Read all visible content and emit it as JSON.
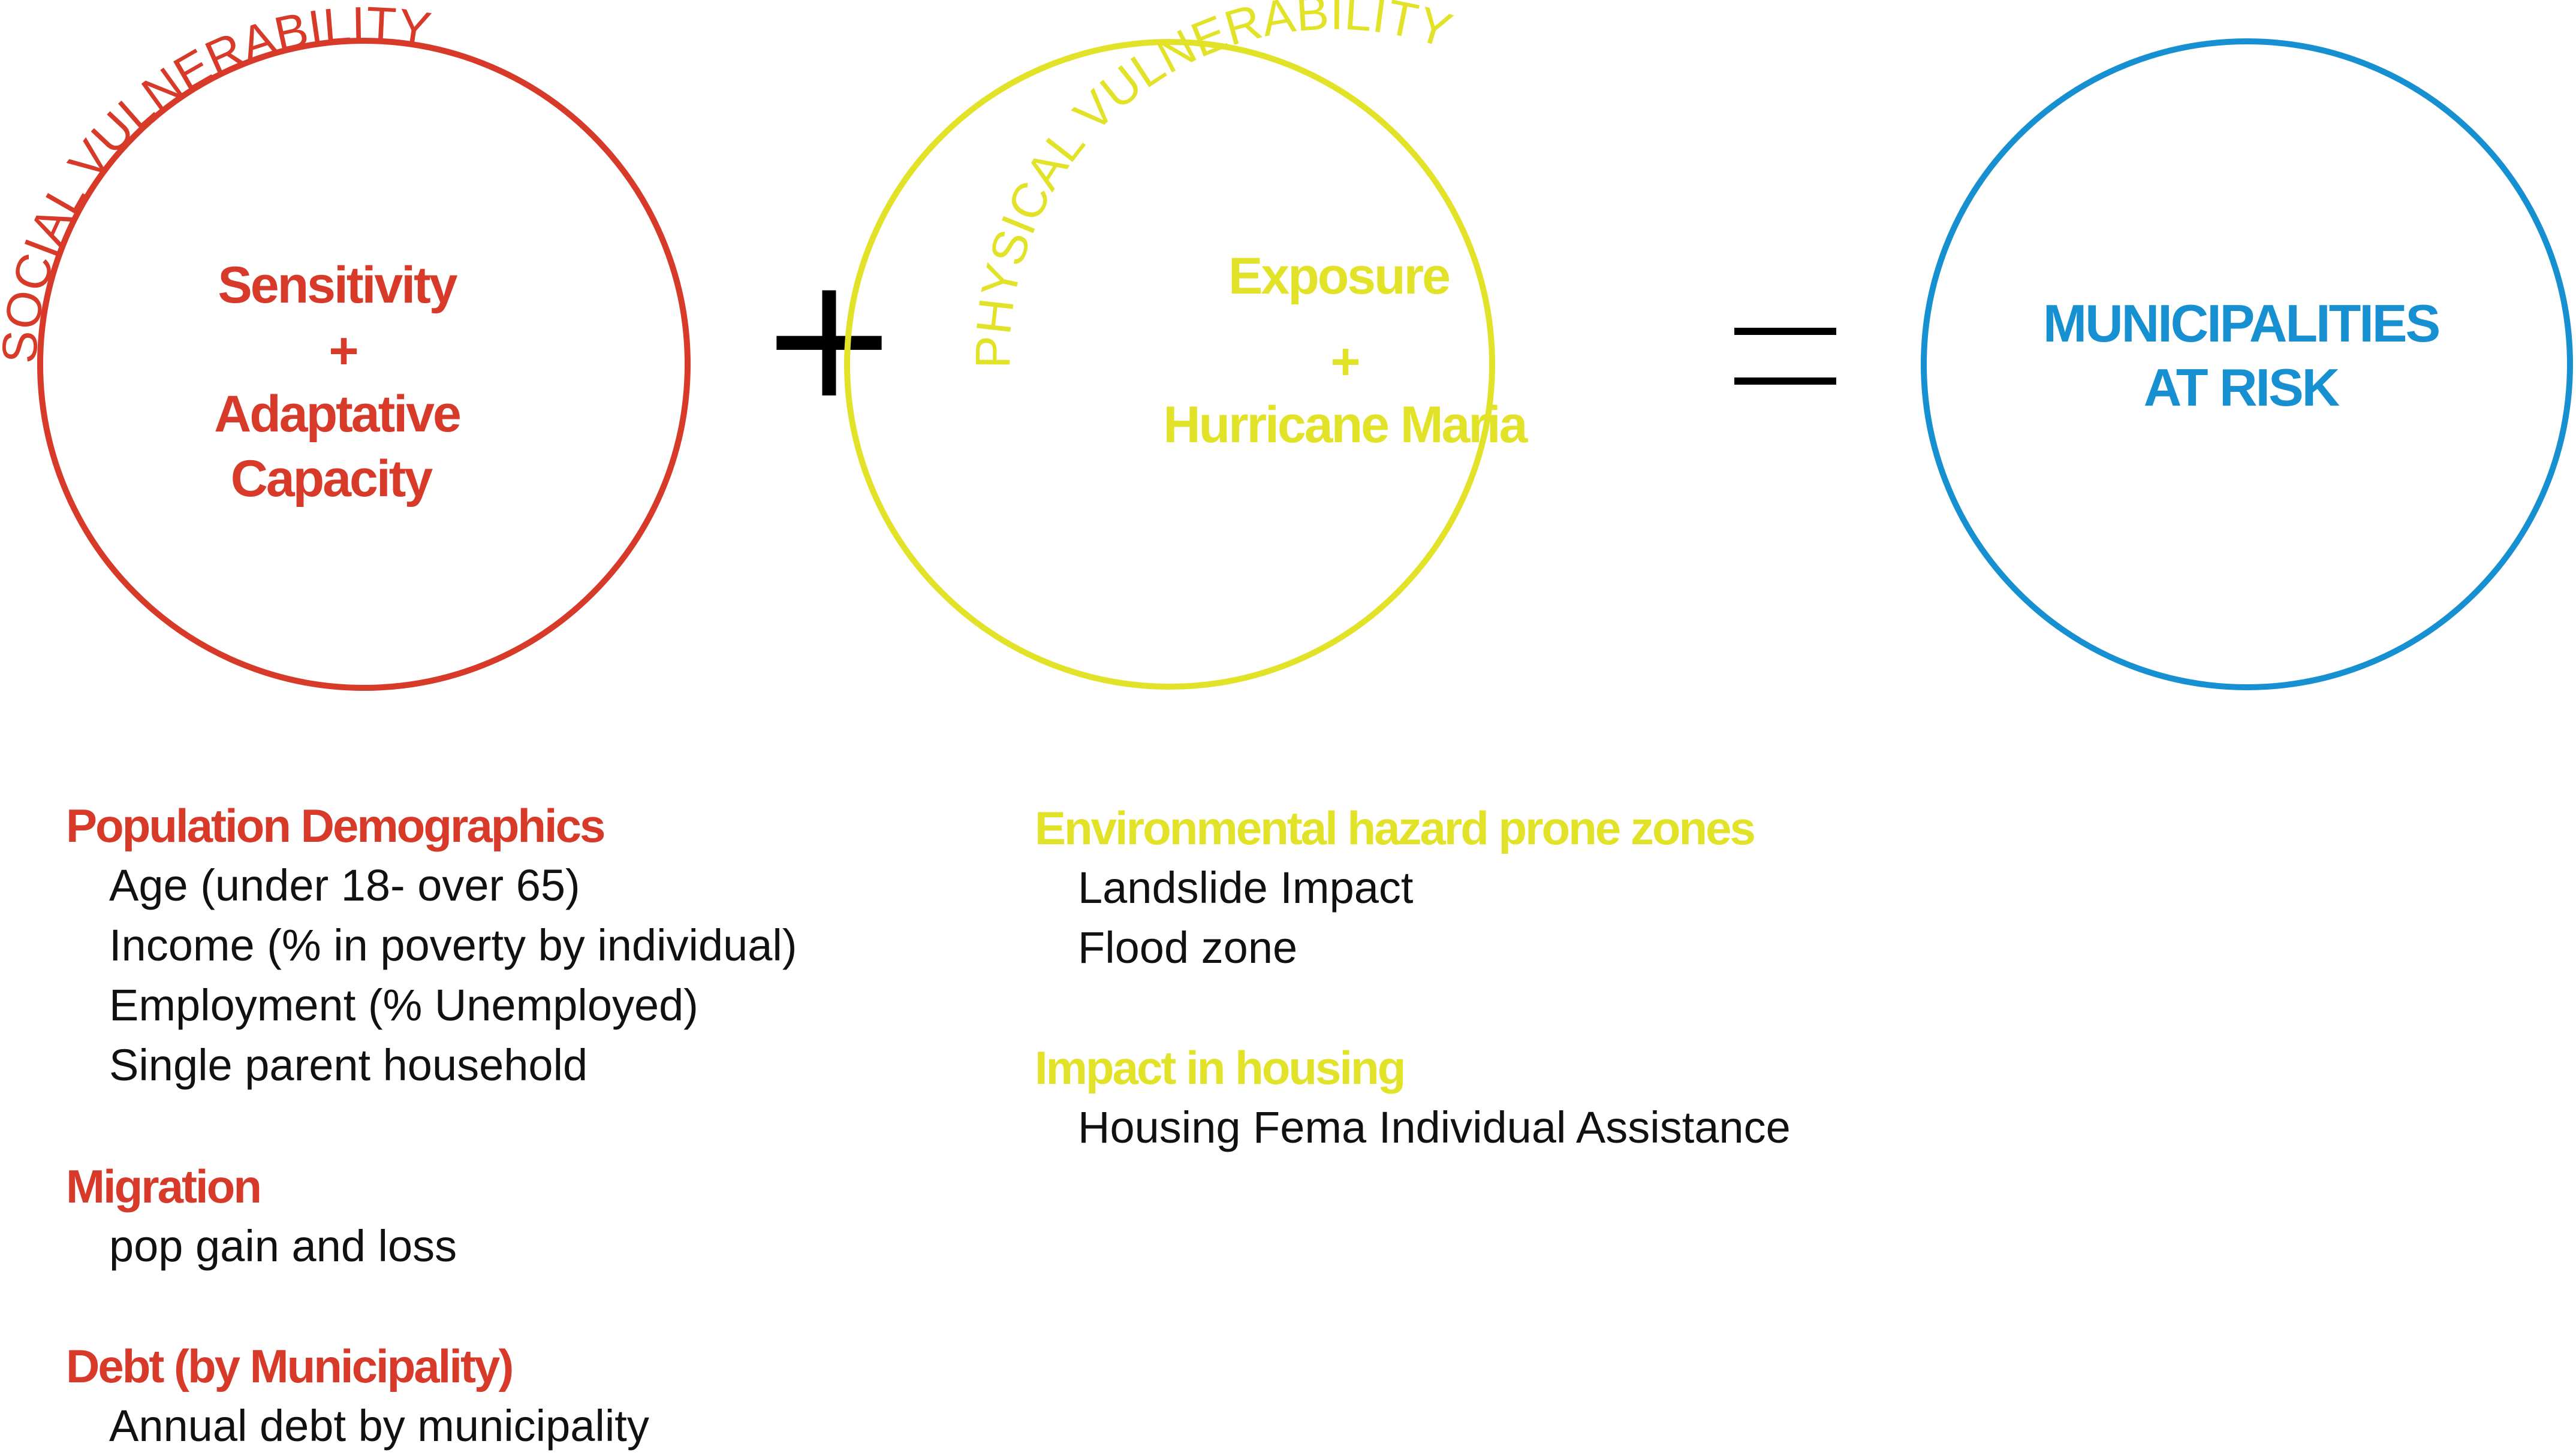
{
  "colors": {
    "social": "#d83a2a",
    "physical": "#e2e328",
    "risk": "#1790d2",
    "operator": "#000000",
    "body_text": "#111111"
  },
  "social": {
    "arc_label": "SOCIAL VULNERABILITY",
    "lines": [
      "Sensitivity",
      "+",
      "Adaptative",
      "Capacity"
    ]
  },
  "physical": {
    "arc_label": "PHYSICAL VULNERABILITY",
    "lines": [
      "Exposure",
      "+",
      "Hurricane Maria"
    ]
  },
  "risk": {
    "lines": [
      "MUNICIPALITIES",
      "AT RISK"
    ]
  },
  "operators": {
    "plus": "+",
    "equals": "="
  },
  "social_sections": [
    {
      "title": "Population Demographics",
      "items": [
        "Age (under 18- over 65)",
        "Income (% in poverty by individual)",
        "Employment (% Unemployed)",
        "Single parent household"
      ]
    },
    {
      "title": "Migration",
      "items": [
        "pop gain and loss"
      ]
    },
    {
      "title": "Debt (by Municipality)",
      "items": [
        "Annual debt by municipality"
      ]
    }
  ],
  "physical_sections": [
    {
      "title": "Environmental hazard prone zones",
      "items": [
        "Landslide Impact",
        "Flood zone"
      ]
    },
    {
      "title": "Impact in housing",
      "items": [
        "Housing Fema Individual Assistance"
      ]
    }
  ]
}
